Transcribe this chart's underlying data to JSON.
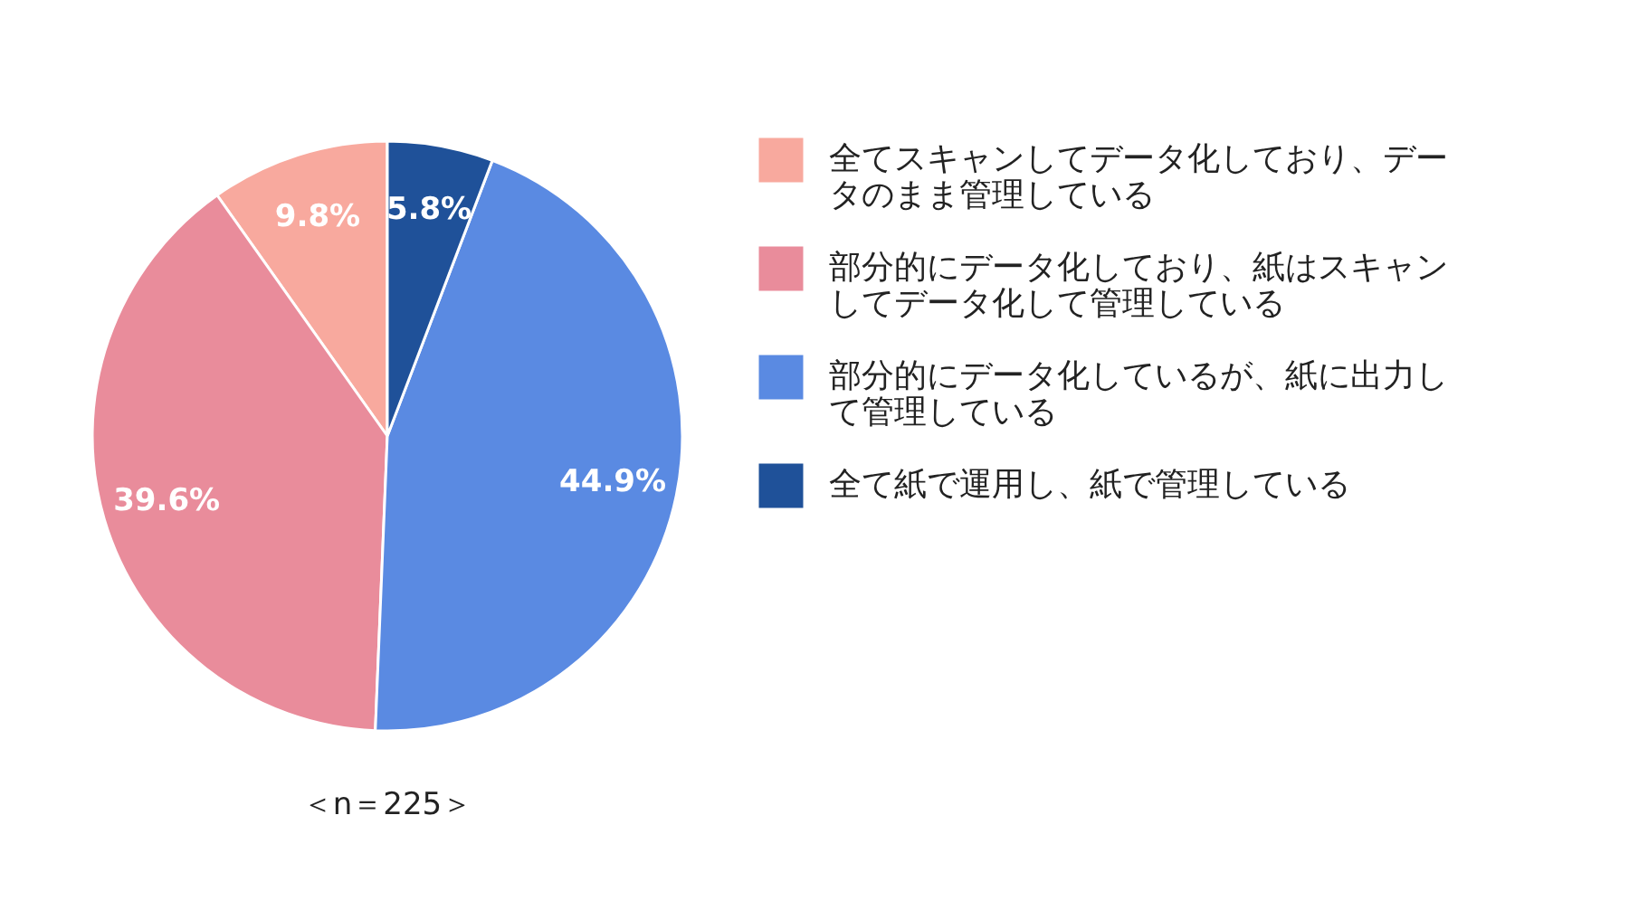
{
  "chart_data": {
    "type": "pie",
    "categories": [
      "全てスキャンしてデータ化しており、データのまま管理している",
      "部分的にデータ化しており、紙はスキャンしてデータ化して管理している",
      "部分的にデータ化しているが、紙に出力して管理している",
      "全て紙で運用し、紙で管理している"
    ],
    "values": [
      9.8,
      39.6,
      44.9,
      5.8
    ],
    "colors": [
      "#f8a99e",
      "#e98c9b",
      "#5a8ae2",
      "#1f5199"
    ],
    "value_labels": [
      "9.8%",
      "39.6%",
      "44.9%",
      "5.8%"
    ],
    "annotations": [
      "＜n＝225＞"
    ],
    "legend": "right"
  }
}
